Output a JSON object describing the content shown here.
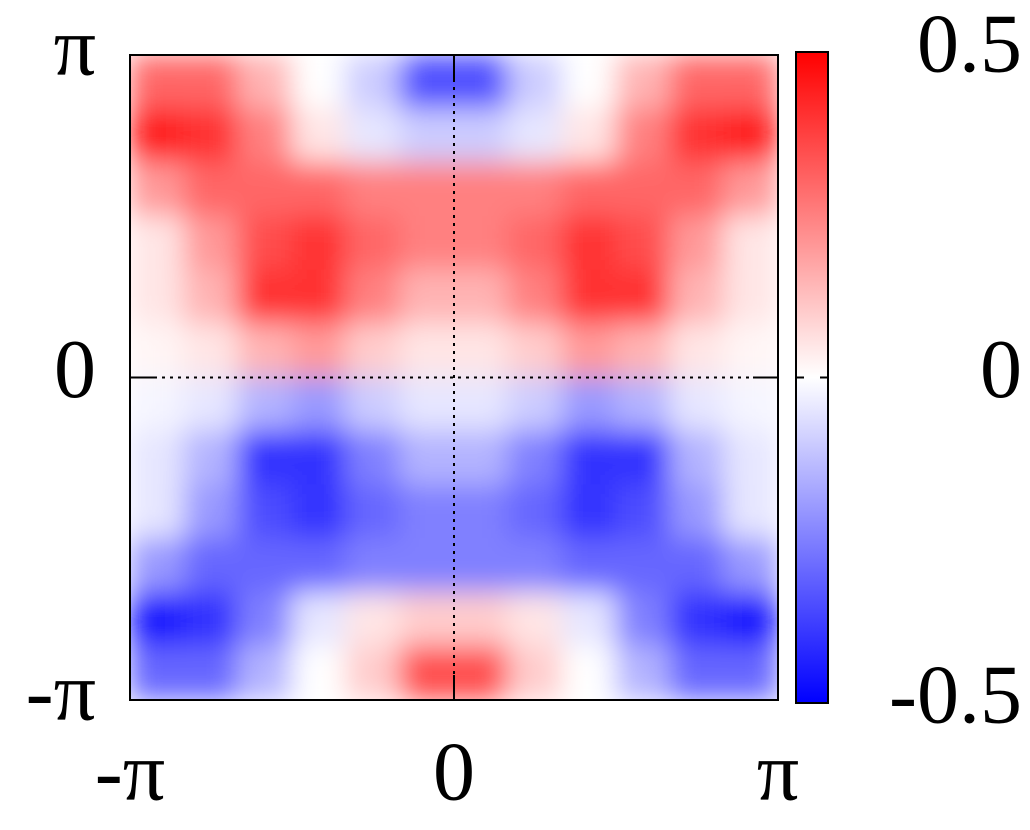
{
  "chart_data": {
    "type": "heatmap",
    "xlim": [
      -3.14159,
      3.14159
    ],
    "ylim": [
      -3.14159,
      3.14159
    ],
    "xticks": [
      {
        "value": -3.14159,
        "label": "-π"
      },
      0,
      {
        "value": 3.14159,
        "label": "π"
      }
    ],
    "yticks": [
      {
        "value": -3.14159,
        "label": "-π"
      },
      0,
      {
        "value": 3.14159,
        "label": "π"
      }
    ],
    "z": [
      [
        0.3,
        0.3,
        0.15,
        0,
        -0.1,
        -0.35,
        -0.35,
        -0.1,
        0,
        0.15,
        0.3,
        0.3
      ],
      [
        0.45,
        0.4,
        0.25,
        0.05,
        -0.05,
        -0.1,
        -0.1,
        -0.05,
        0.05,
        0.25,
        0.4,
        0.45
      ],
      [
        0.2,
        0.3,
        0.3,
        0.3,
        0.25,
        0.25,
        0.25,
        0.25,
        0.3,
        0.3,
        0.3,
        0.2
      ],
      [
        0.05,
        0.2,
        0.35,
        0.4,
        0.3,
        0.25,
        0.25,
        0.3,
        0.4,
        0.35,
        0.2,
        0.05
      ],
      [
        0.05,
        0.15,
        0.4,
        0.4,
        0.25,
        0.15,
        0.15,
        0.25,
        0.4,
        0.4,
        0.15,
        0.05
      ],
      [
        0.02,
        0.05,
        0.15,
        0.2,
        0.1,
        0.05,
        0.05,
        0.1,
        0.2,
        0.15,
        0.05,
        0.02
      ],
      [
        -0.02,
        -0.05,
        -0.15,
        -0.2,
        -0.1,
        -0.05,
        -0.05,
        -0.1,
        -0.2,
        -0.15,
        -0.05,
        -0.02
      ],
      [
        -0.05,
        -0.15,
        -0.4,
        -0.4,
        -0.25,
        -0.15,
        -0.15,
        -0.25,
        -0.4,
        -0.4,
        -0.15,
        -0.05
      ],
      [
        -0.05,
        -0.2,
        -0.35,
        -0.4,
        -0.3,
        -0.25,
        -0.25,
        -0.3,
        -0.4,
        -0.35,
        -0.2,
        -0.05
      ],
      [
        -0.2,
        -0.3,
        -0.3,
        -0.3,
        -0.25,
        -0.25,
        -0.25,
        -0.25,
        -0.3,
        -0.3,
        -0.3,
        -0.2
      ],
      [
        -0.45,
        -0.4,
        -0.25,
        -0.05,
        0.05,
        0.1,
        0.1,
        0.05,
        -0.05,
        -0.25,
        -0.4,
        -0.45
      ],
      [
        -0.3,
        -0.3,
        -0.15,
        0,
        0.1,
        0.35,
        0.35,
        0.1,
        0,
        -0.15,
        -0.3,
        -0.3
      ]
    ],
    "colorbar": {
      "zlim": [
        -0.5,
        0.5
      ],
      "ticks": [
        0.5,
        0,
        -0.5
      ]
    }
  }
}
